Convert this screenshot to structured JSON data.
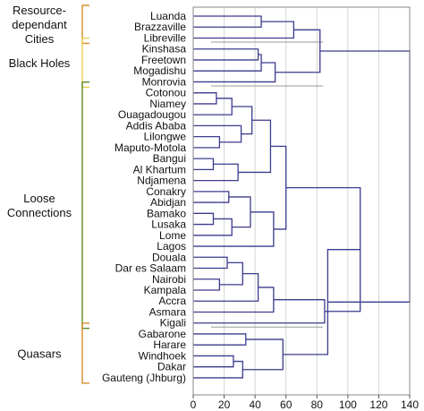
{
  "chart_data": {
    "type": "dendrogram",
    "xlim": [
      0,
      140
    ],
    "x_ticks": [
      0,
      20,
      40,
      60,
      80,
      100,
      120,
      140
    ],
    "grid": true,
    "leaves": [
      "Luanda",
      "Brazzaville",
      "Libreville",
      "Kinshasa",
      "Freetown",
      "Mogadishu",
      "Monrovia",
      "Cotonou",
      "Niamey",
      "Ouagadougou",
      "Addis Ababa",
      "Lilongwe",
      "Maputo-Motola",
      "Bangui",
      "Al Khartum",
      "Ndjamena",
      "Conakry",
      "Abidjan",
      "Bamako",
      "Lusaka",
      "Lome",
      "Lagos",
      "Douala",
      "Dar es Salaam",
      "Nairobi",
      "Kampala",
      "Accra",
      "Asmara",
      "Kigali",
      "Gabarone",
      "Harare",
      "Windhoek",
      "Dakar",
      "Gauteng (Jhburg)"
    ],
    "groups": [
      {
        "label": [
          "Resource-",
          "dependant",
          "Cities"
        ],
        "first": 0,
        "last": 2,
        "color": "#d68f2c"
      },
      {
        "label": [
          "Black Holes"
        ],
        "first": 3,
        "last": 6,
        "color": "#e8cf52"
      },
      {
        "label": [
          "Loose",
          "Connections"
        ],
        "first": 7,
        "last": 28,
        "color": "#5d8a2a"
      },
      {
        "label": [
          "Quasars"
        ],
        "first": 29,
        "last": 33,
        "color": "#d68f2c"
      }
    ],
    "merges": [
      {
        "a": "Luanda",
        "b": "Brazzaville",
        "height": 44,
        "id": "m1"
      },
      {
        "a": "m1",
        "b": "Libreville",
        "height": 65,
        "id": "m2"
      },
      {
        "a": "Kinshasa",
        "b": "Freetown",
        "height": 42,
        "id": "m3"
      },
      {
        "a": "m3",
        "b": "Mogadishu",
        "height": 44,
        "id": "m4"
      },
      {
        "a": "m4",
        "b": "Monrovia",
        "height": 53,
        "id": "m5"
      },
      {
        "a": "m2",
        "b": "m5",
        "height": 82,
        "id": "m6"
      },
      {
        "a": "Cotonou",
        "b": "Niamey",
        "height": 15,
        "id": "m7"
      },
      {
        "a": "m7",
        "b": "Ouagadougou",
        "height": 25,
        "id": "m8"
      },
      {
        "a": "Lilongwe",
        "b": "Maputo-Motola",
        "height": 17,
        "id": "m9"
      },
      {
        "a": "Addis Ababa",
        "b": "m9",
        "height": 31,
        "id": "m10"
      },
      {
        "a": "m8",
        "b": "m10",
        "height": 38,
        "id": "m11"
      },
      {
        "a": "Bangui",
        "b": "Al Khartum",
        "height": 13,
        "id": "m12"
      },
      {
        "a": "m12",
        "b": "Ndjamena",
        "height": 29,
        "id": "m13"
      },
      {
        "a": "m11",
        "b": "m13",
        "height": 50,
        "id": "m14"
      },
      {
        "a": "Conakry",
        "b": "Abidjan",
        "height": 23,
        "id": "m15"
      },
      {
        "a": "Bamako",
        "b": "Lusaka",
        "height": 13,
        "id": "m16"
      },
      {
        "a": "m16",
        "b": "Lome",
        "height": 25,
        "id": "m17"
      },
      {
        "a": "m15",
        "b": "m17",
        "height": 37,
        "id": "m18"
      },
      {
        "a": "m18",
        "b": "Lagos",
        "height": 52,
        "id": "m19"
      },
      {
        "a": "m14",
        "b": "m19",
        "height": 60,
        "id": "m20"
      },
      {
        "a": "Douala",
        "b": "Dar es Salaam",
        "height": 22,
        "id": "m21"
      },
      {
        "a": "Nairobi",
        "b": "Kampala",
        "height": 17,
        "id": "m22"
      },
      {
        "a": "m21",
        "b": "m22",
        "height": 32,
        "id": "m23"
      },
      {
        "a": "m23",
        "b": "Accra",
        "height": 42,
        "id": "m24"
      },
      {
        "a": "m24",
        "b": "Asmara",
        "height": 52,
        "id": "m25"
      },
      {
        "a": "m25",
        "b": "Kigali",
        "height": 85,
        "id": "m26"
      },
      {
        "a": "m20",
        "b": "m26",
        "height": 108,
        "id": "m27"
      },
      {
        "a": "Gabarone",
        "b": "Harare",
        "height": 34,
        "id": "m28"
      },
      {
        "a": "Windhoek",
        "b": "Dakar",
        "height": 26,
        "id": "m29"
      },
      {
        "a": "m29",
        "b": "Gauteng (Jhburg)",
        "height": 32,
        "id": "m30"
      },
      {
        "a": "m28",
        "b": "m30",
        "height": 58,
        "id": "m31"
      },
      {
        "a": "m27",
        "b": "m31",
        "height": 87,
        "id": "m32"
      },
      {
        "a": "m6",
        "b": "m32",
        "height": 140,
        "id": "m33"
      }
    ]
  }
}
